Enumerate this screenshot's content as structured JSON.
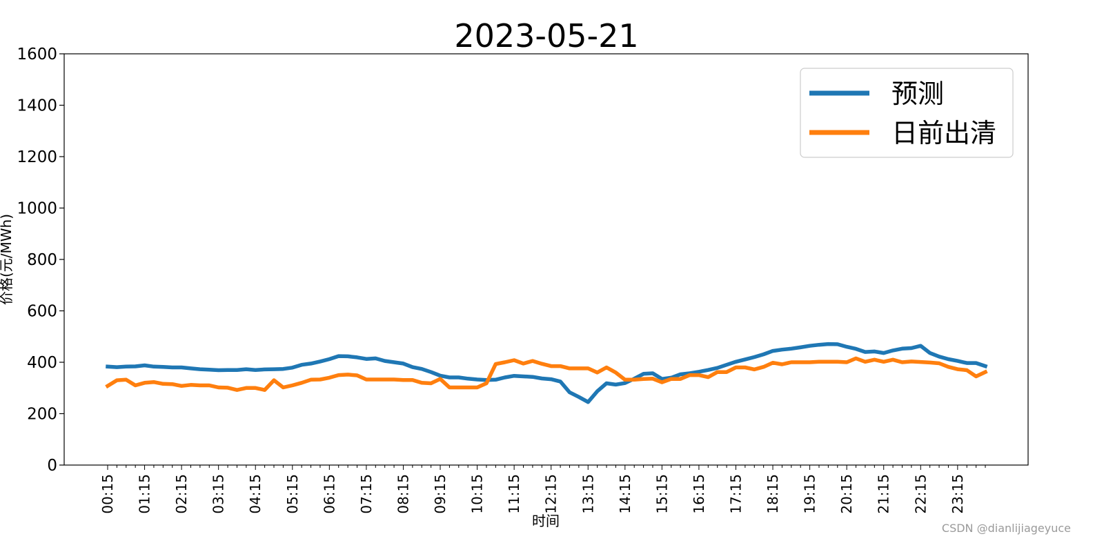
{
  "chart_data": {
    "type": "line",
    "title": "2023-05-21",
    "xlabel": "时间",
    "ylabel": "价格(元/MWh)",
    "ylim": [
      0,
      1600
    ],
    "yticks": [
      "0",
      "200",
      "400",
      "600",
      "800",
      "1000",
      "1200",
      "1400",
      "1600"
    ],
    "xtick_labels": [
      "00:15",
      "01:15",
      "02:15",
      "03:15",
      "04:15",
      "05:15",
      "06:15",
      "07:15",
      "08:15",
      "09:15",
      "10:15",
      "11:15",
      "12:15",
      "13:15",
      "14:15",
      "15:15",
      "16:15",
      "17:15",
      "18:15",
      "19:15",
      "20:15",
      "21:15",
      "22:15",
      "23:15"
    ],
    "legend_position": "top-right",
    "grid": false,
    "series": [
      {
        "name": "预测",
        "color": "#1f77b4",
        "values": [
          383,
          381,
          383,
          384,
          388,
          383,
          382,
          380,
          380,
          376,
          373,
          371,
          369,
          370,
          370,
          373,
          370,
          372,
          373,
          374,
          379,
          390,
          395,
          403,
          412,
          424,
          423,
          419,
          413,
          415,
          405,
          400,
          395,
          381,
          374,
          362,
          348,
          341,
          341,
          336,
          333,
          331,
          332,
          341,
          347,
          345,
          343,
          337,
          334,
          325,
          283,
          265,
          245,
          287,
          318,
          313,
          319,
          336,
          355,
          357,
          335,
          340,
          353,
          357,
          363,
          370,
          378,
          390,
          402,
          411,
          420,
          431,
          444,
          449,
          453,
          458,
          464,
          468,
          471,
          470,
          460,
          452,
          440,
          442,
          436,
          446,
          453,
          455,
          464,
          436,
          422,
          412,
          405,
          397,
          397,
          385
        ]
      },
      {
        "name": "日前出清",
        "color": "#ff7f0e",
        "values": [
          308,
          330,
          332,
          310,
          320,
          323,
          316,
          315,
          308,
          312,
          310,
          310,
          302,
          301,
          292,
          300,
          300,
          292,
          330,
          302,
          310,
          320,
          332,
          333,
          340,
          350,
          352,
          349,
          333,
          333,
          333,
          333,
          331,
          331,
          320,
          318,
          335,
          302,
          302,
          302,
          302,
          318,
          393,
          400,
          408,
          395,
          405,
          394,
          385,
          385,
          376,
          376,
          376,
          360,
          380,
          360,
          332,
          332,
          335,
          336,
          322,
          335,
          335,
          350,
          350,
          342,
          362,
          362,
          380,
          380,
          372,
          382,
          398,
          392,
          400,
          400,
          400,
          402,
          402,
          402,
          400,
          415,
          402,
          410,
          402,
          410,
          400,
          403,
          401,
          399,
          396,
          382,
          373,
          369,
          345,
          362
        ]
      }
    ]
  },
  "watermark": "CSDN @dianlijiageyuce"
}
